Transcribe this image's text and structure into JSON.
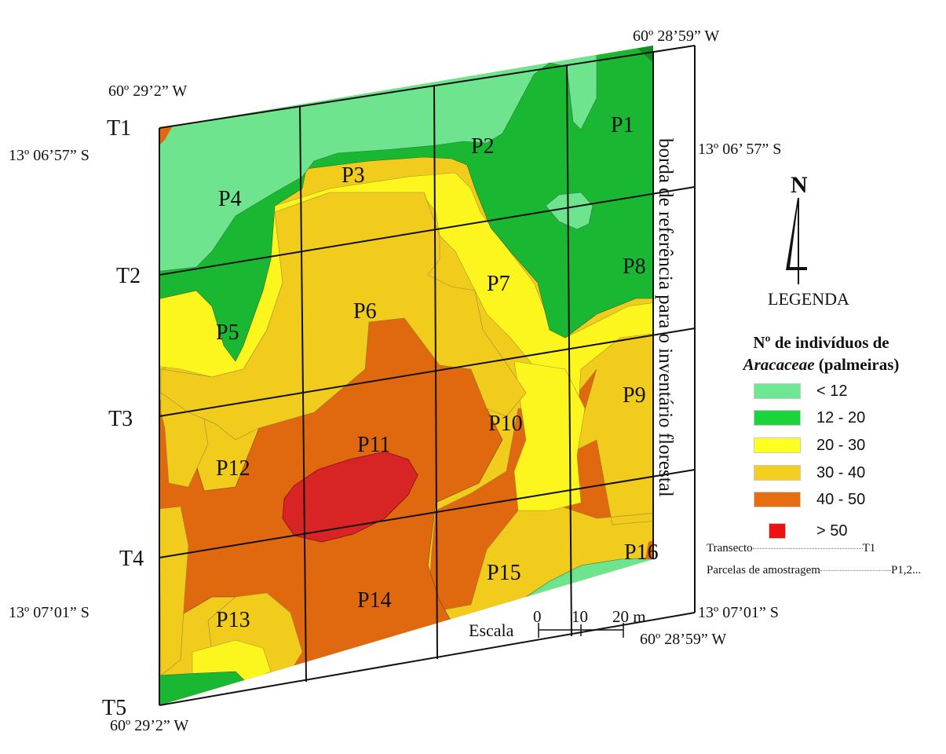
{
  "map": {
    "coordinates": {
      "top_left_lon": "60º 29’2” W",
      "top_right_lon": "60º 28’59” W",
      "top_left_lat": "13º 06’57” S",
      "top_right_lat": "13º 06’ 57” S",
      "bottom_left_lat": "13º 07’01” S",
      "bottom_right_lat": "13º 07’01” S",
      "bottom_right_lon": "60º 28’59” W",
      "bottom_left_lon": "60º 29’2” W"
    },
    "transects": [
      "T1",
      "T2",
      "T3",
      "T4",
      "T5"
    ],
    "plots": [
      "P1",
      "P2",
      "P3",
      "P4",
      "P5",
      "P6",
      "P7",
      "P8",
      "P9",
      "P10",
      "P11",
      "P12",
      "P13",
      "P14",
      "P15",
      "P16"
    ],
    "edge_label": "borda de referência para o inventário florestal",
    "north_label": "N",
    "scale": {
      "label": "Escala",
      "ticks": [
        "0",
        "10",
        "20 m"
      ]
    }
  },
  "legend": {
    "heading": "LEGENDA",
    "title_line1": "Nº de indivíduos de",
    "title_italic": "Aracaceae",
    "title_rest": "(palmeiras)",
    "classes": [
      {
        "label": "< 12",
        "color": "#6de892"
      },
      {
        "label": "12 - 20",
        "color": "#1ad43a"
      },
      {
        "label": "20 - 30",
        "color": "#ffff22"
      },
      {
        "label": "30 - 40",
        "color": "#f4cf1f"
      },
      {
        "label": "40 - 50",
        "color": "#e56e10"
      },
      {
        "label": "> 50",
        "color": "#ee1111"
      }
    ],
    "key": [
      {
        "label": "Transecto",
        "value": "T1"
      },
      {
        "label": "Parcelas de amostragem",
        "value": "P1,2..."
      }
    ]
  },
  "colors": {
    "class_lt12": "#6ee48e",
    "class_12_20": "#1ab832",
    "class_20_30": "#fdf51e",
    "class_30_40": "#f2cc1c",
    "class_40_50": "#e0690f",
    "class_gt50": "#d82424",
    "grid_line": "#111111"
  }
}
